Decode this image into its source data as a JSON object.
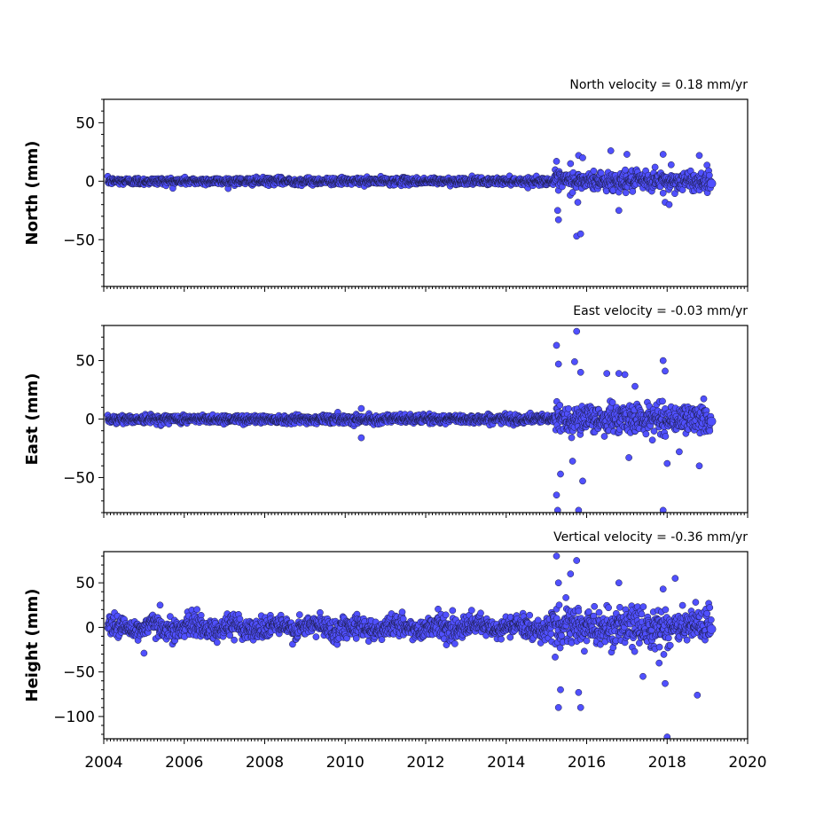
{
  "chart_data": [
    {
      "type": "scatter",
      "title": "North velocity = 0.18 mm/yr",
      "ylabel": "North (mm)",
      "xlim": [
        2004,
        2020
      ],
      "ylim": [
        -90,
        70
      ],
      "yticks": [
        50,
        0,
        -50
      ],
      "ytick_labels": [
        "50",
        "0",
        "−50"
      ],
      "noise": {
        "pre2015": 1.5,
        "post2015": 4
      },
      "outliers": [
        {
          "x": 2015.25,
          "y": 17
        },
        {
          "x": 2015.28,
          "y": -25
        },
        {
          "x": 2015.3,
          "y": -33
        },
        {
          "x": 2015.75,
          "y": -47
        },
        {
          "x": 2015.85,
          "y": -45
        },
        {
          "x": 2015.8,
          "y": 22
        },
        {
          "x": 2015.78,
          "y": -18
        },
        {
          "x": 2016.6,
          "y": 26
        },
        {
          "x": 2017.0,
          "y": 23
        },
        {
          "x": 2016.8,
          "y": -25
        },
        {
          "x": 2017.9,
          "y": 23
        },
        {
          "x": 2017.95,
          "y": -18
        },
        {
          "x": 2018.05,
          "y": -20
        },
        {
          "x": 2018.8,
          "y": 22
        },
        {
          "x": 2015.6,
          "y": 15
        },
        {
          "x": 2015.9,
          "y": 20
        },
        {
          "x": 2017.7,
          "y": 12
        },
        {
          "x": 2018.1,
          "y": 14
        }
      ]
    },
    {
      "type": "scatter",
      "title": "East velocity = -0.03 mm/yr",
      "ylabel": "East (mm)",
      "xlim": [
        2004,
        2020
      ],
      "ylim": [
        -80,
        80
      ],
      "yticks": [
        50,
        0,
        -50
      ],
      "ytick_labels": [
        "50",
        "0",
        "−50"
      ],
      "noise": {
        "pre2015": 1.8,
        "post2015": 6
      },
      "outliers": [
        {
          "x": 2010.4,
          "y": 9
        },
        {
          "x": 2010.4,
          "y": -16
        },
        {
          "x": 2015.25,
          "y": 63
        },
        {
          "x": 2015.3,
          "y": 47
        },
        {
          "x": 2015.25,
          "y": -65
        },
        {
          "x": 2015.28,
          "y": -78
        },
        {
          "x": 2015.35,
          "y": -47
        },
        {
          "x": 2015.75,
          "y": 75
        },
        {
          "x": 2015.8,
          "y": -78
        },
        {
          "x": 2015.85,
          "y": 40
        },
        {
          "x": 2015.9,
          "y": -53
        },
        {
          "x": 2016.5,
          "y": 39
        },
        {
          "x": 2016.8,
          "y": 39
        },
        {
          "x": 2016.95,
          "y": 38
        },
        {
          "x": 2017.2,
          "y": 28
        },
        {
          "x": 2017.05,
          "y": -33
        },
        {
          "x": 2017.9,
          "y": 50
        },
        {
          "x": 2017.95,
          "y": 41
        },
        {
          "x": 2018.0,
          "y": -38
        },
        {
          "x": 2018.3,
          "y": -28
        },
        {
          "x": 2018.8,
          "y": -40
        },
        {
          "x": 2017.9,
          "y": -78
        },
        {
          "x": 2015.7,
          "y": 49
        },
        {
          "x": 2015.65,
          "y": -36
        }
      ]
    },
    {
      "type": "scatter",
      "title": "Vertical velocity = -0.36 mm/yr",
      "ylabel": "Height (mm)",
      "xlim": [
        2004,
        2020
      ],
      "ylim": [
        -125,
        85
      ],
      "yticks": [
        50,
        0,
        -50,
        -100
      ],
      "ytick_labels": [
        "50",
        "0",
        "−50",
        "−100"
      ],
      "noise": {
        "pre2015": 6,
        "post2015": 11
      },
      "outliers": [
        {
          "x": 2005.4,
          "y": 25
        },
        {
          "x": 2005.0,
          "y": -29
        },
        {
          "x": 2015.25,
          "y": 80
        },
        {
          "x": 2015.3,
          "y": -90
        },
        {
          "x": 2015.35,
          "y": -70
        },
        {
          "x": 2015.75,
          "y": 75
        },
        {
          "x": 2015.8,
          "y": -73
        },
        {
          "x": 2015.85,
          "y": -90
        },
        {
          "x": 2015.6,
          "y": 60
        },
        {
          "x": 2016.8,
          "y": 50
        },
        {
          "x": 2017.4,
          "y": -55
        },
        {
          "x": 2017.9,
          "y": 43
        },
        {
          "x": 2017.95,
          "y": -63
        },
        {
          "x": 2018.2,
          "y": 55
        },
        {
          "x": 2018.75,
          "y": -76
        },
        {
          "x": 2018.0,
          "y": -123
        },
        {
          "x": 2017.8,
          "y": -40
        },
        {
          "x": 2015.3,
          "y": 50
        }
      ]
    }
  ],
  "xaxis": {
    "ticks": [
      2004,
      2006,
      2008,
      2010,
      2012,
      2014,
      2016,
      2018,
      2020
    ],
    "tick_labels": [
      "2004",
      "2006",
      "2008",
      "2010",
      "2012",
      "2014",
      "2016",
      "2018",
      "2020"
    ],
    "data_start": 2004.1,
    "data_end": 2019.1
  },
  "colors": {
    "marker_fill": "#5050ff",
    "marker_edge": "#1a1a40"
  }
}
